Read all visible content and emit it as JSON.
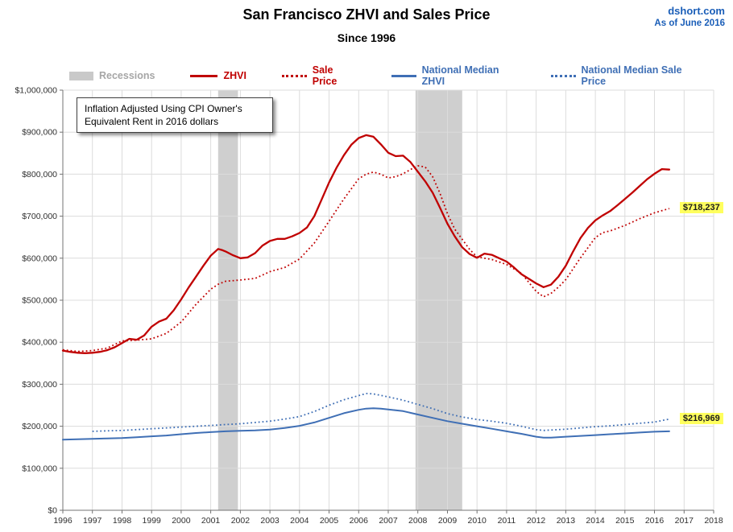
{
  "header": {
    "title": "San Francisco ZHVI and Sales Price",
    "subtitle": "Since 1996",
    "source": "dshort.com",
    "as_of": "As of June 2016"
  },
  "legend": {
    "items": [
      {
        "label": "Recessions"
      },
      {
        "label": "ZHVI"
      },
      {
        "label": "Sale Price"
      },
      {
        "label": "National Median ZHVI"
      },
      {
        "label": "National Median Sale Price"
      }
    ]
  },
  "annotation": {
    "text": "Inflation Adjusted Using CPI Owner's Equivalent Rent in 2016 dollars"
  },
  "callouts": {
    "sale_price": {
      "text": "$718,237",
      "value": 718.237
    },
    "national_sale": {
      "text": "$216,969",
      "value": 216.969
    }
  },
  "chart_data": {
    "type": "line",
    "title": "San Francisco ZHVI and Sales Price",
    "subtitle": "Since 1996",
    "xlabel": "",
    "ylabel": "",
    "x_range": [
      1996,
      2018
    ],
    "y_range": [
      0,
      1000
    ],
    "y_values_in": "thousands_of_2016_dollars",
    "grid": true,
    "legend_position": "top",
    "x_ticks": [
      1996,
      1997,
      1998,
      1999,
      2000,
      2001,
      2002,
      2003,
      2004,
      2005,
      2006,
      2007,
      2008,
      2009,
      2010,
      2011,
      2012,
      2013,
      2014,
      2015,
      2016,
      2017,
      2018
    ],
    "y_ticks": [
      {
        "v": 0,
        "label": "$0"
      },
      {
        "v": 100,
        "label": "$100,000"
      },
      {
        "v": 200,
        "label": "$200,000"
      },
      {
        "v": 300,
        "label": "$300,000"
      },
      {
        "v": 400,
        "label": "$400,000"
      },
      {
        "v": 500,
        "label": "$500,000"
      },
      {
        "v": 600,
        "label": "$600,000"
      },
      {
        "v": 700,
        "label": "$700,000"
      },
      {
        "v": 800,
        "label": "$800,000"
      },
      {
        "v": 900,
        "label": "$900,000"
      },
      {
        "v": 1000,
        "label": "$1,000,000"
      }
    ],
    "recessions": [
      [
        2001.25,
        2001.92
      ],
      [
        2007.92,
        2009.5
      ]
    ],
    "colors": {
      "recession": "#cfcfcf",
      "grid": "#dcdcdc",
      "axis": "#737373",
      "red": "#C00000",
      "blue": "#3F6FB5",
      "callout_bg": "#ffff5e"
    },
    "series": [
      {
        "id": "zhvi",
        "name": "ZHVI",
        "color": "#C00000",
        "style": "solid",
        "width": 2.3,
        "points": [
          [
            1996.0,
            380
          ],
          [
            1996.25,
            377
          ],
          [
            1996.5,
            375
          ],
          [
            1996.75,
            374
          ],
          [
            1997.0,
            375
          ],
          [
            1997.25,
            377
          ],
          [
            1997.5,
            381
          ],
          [
            1997.75,
            388
          ],
          [
            1998.0,
            398
          ],
          [
            1998.25,
            408
          ],
          [
            1998.5,
            406
          ],
          [
            1998.75,
            416
          ],
          [
            1999.0,
            437
          ],
          [
            1999.25,
            449
          ],
          [
            1999.5,
            456
          ],
          [
            1999.75,
            476
          ],
          [
            2000.0,
            502
          ],
          [
            2000.25,
            530
          ],
          [
            2000.5,
            556
          ],
          [
            2000.75,
            582
          ],
          [
            2001.0,
            606
          ],
          [
            2001.25,
            622
          ],
          [
            2001.4,
            619
          ],
          [
            2001.5,
            616
          ],
          [
            2001.75,
            607
          ],
          [
            2002.0,
            600
          ],
          [
            2002.25,
            602
          ],
          [
            2002.5,
            612
          ],
          [
            2002.75,
            630
          ],
          [
            2003.0,
            641
          ],
          [
            2003.25,
            646
          ],
          [
            2003.5,
            646
          ],
          [
            2003.75,
            652
          ],
          [
            2004.0,
            660
          ],
          [
            2004.25,
            673
          ],
          [
            2004.5,
            700
          ],
          [
            2004.75,
            740
          ],
          [
            2005.0,
            780
          ],
          [
            2005.25,
            815
          ],
          [
            2005.5,
            845
          ],
          [
            2005.75,
            870
          ],
          [
            2006.0,
            886
          ],
          [
            2006.25,
            893
          ],
          [
            2006.5,
            889
          ],
          [
            2006.75,
            871
          ],
          [
            2007.0,
            851
          ],
          [
            2007.25,
            843
          ],
          [
            2007.5,
            844
          ],
          [
            2007.75,
            829
          ],
          [
            2008.0,
            806
          ],
          [
            2008.25,
            783
          ],
          [
            2008.5,
            756
          ],
          [
            2008.75,
            720
          ],
          [
            2009.0,
            682
          ],
          [
            2009.25,
            652
          ],
          [
            2009.5,
            626
          ],
          [
            2009.75,
            610
          ],
          [
            2010.0,
            601
          ],
          [
            2010.25,
            611
          ],
          [
            2010.5,
            608
          ],
          [
            2010.75,
            600
          ],
          [
            2011.0,
            592
          ],
          [
            2011.25,
            578
          ],
          [
            2011.5,
            562
          ],
          [
            2011.75,
            551
          ],
          [
            2012.0,
            540
          ],
          [
            2012.25,
            531
          ],
          [
            2012.5,
            537
          ],
          [
            2012.75,
            556
          ],
          [
            2013.0,
            582
          ],
          [
            2013.25,
            616
          ],
          [
            2013.5,
            648
          ],
          [
            2013.75,
            672
          ],
          [
            2014.0,
            690
          ],
          [
            2014.25,
            702
          ],
          [
            2014.5,
            712
          ],
          [
            2014.75,
            726
          ],
          [
            2015.0,
            741
          ],
          [
            2015.25,
            756
          ],
          [
            2015.5,
            772
          ],
          [
            2015.75,
            788
          ],
          [
            2016.0,
            801
          ],
          [
            2016.25,
            812
          ],
          [
            2016.5,
            811
          ]
        ]
      },
      {
        "id": "sale-price",
        "name": "Sale Price",
        "color": "#C00000",
        "style": "dotted",
        "width": 1.8,
        "points": [
          [
            1996.0,
            382
          ],
          [
            1996.5,
            378
          ],
          [
            1997.0,
            380
          ],
          [
            1997.5,
            386
          ],
          [
            1998.0,
            403
          ],
          [
            1998.5,
            405
          ],
          [
            1999.0,
            408
          ],
          [
            1999.5,
            421
          ],
          [
            2000.0,
            448
          ],
          [
            2000.5,
            490
          ],
          [
            2001.0,
            526
          ],
          [
            2001.25,
            538
          ],
          [
            2001.5,
            545
          ],
          [
            2002.0,
            548
          ],
          [
            2002.5,
            552
          ],
          [
            2003.0,
            568
          ],
          [
            2003.5,
            578
          ],
          [
            2004.0,
            598
          ],
          [
            2004.5,
            636
          ],
          [
            2005.0,
            688
          ],
          [
            2005.5,
            741
          ],
          [
            2006.0,
            789
          ],
          [
            2006.25,
            800
          ],
          [
            2006.5,
            805
          ],
          [
            2006.75,
            800
          ],
          [
            2007.0,
            791
          ],
          [
            2007.25,
            794
          ],
          [
            2007.5,
            801
          ],
          [
            2007.75,
            811
          ],
          [
            2008.0,
            820
          ],
          [
            2008.25,
            817
          ],
          [
            2008.5,
            794
          ],
          [
            2008.75,
            754
          ],
          [
            2009.0,
            706
          ],
          [
            2009.25,
            669
          ],
          [
            2009.5,
            645
          ],
          [
            2009.75,
            621
          ],
          [
            2010.0,
            603
          ],
          [
            2010.5,
            597
          ],
          [
            2011.0,
            585
          ],
          [
            2011.5,
            564
          ],
          [
            2012.0,
            521
          ],
          [
            2012.25,
            508
          ],
          [
            2012.5,
            516
          ],
          [
            2012.75,
            531
          ],
          [
            2013.0,
            549
          ],
          [
            2013.5,
            601
          ],
          [
            2014.0,
            649
          ],
          [
            2014.25,
            661
          ],
          [
            2014.5,
            665
          ],
          [
            2015.0,
            678
          ],
          [
            2015.5,
            694
          ],
          [
            2016.0,
            708
          ],
          [
            2016.5,
            718.237
          ]
        ]
      },
      {
        "id": "national-zhvi",
        "name": "National Median ZHVI",
        "color": "#3F6FB5",
        "style": "solid",
        "width": 2,
        "points": [
          [
            1996.0,
            168
          ],
          [
            1996.5,
            169
          ],
          [
            1997.0,
            170
          ],
          [
            1997.5,
            171
          ],
          [
            1998.0,
            172
          ],
          [
            1998.5,
            174
          ],
          [
            1999.0,
            176
          ],
          [
            1999.5,
            178
          ],
          [
            2000.0,
            181
          ],
          [
            2000.5,
            184
          ],
          [
            2001.0,
            186
          ],
          [
            2001.5,
            188
          ],
          [
            2002.0,
            189
          ],
          [
            2002.5,
            190
          ],
          [
            2003.0,
            192
          ],
          [
            2003.5,
            196
          ],
          [
            2004.0,
            201
          ],
          [
            2004.5,
            209
          ],
          [
            2005.0,
            220
          ],
          [
            2005.5,
            231
          ],
          [
            2006.0,
            239
          ],
          [
            2006.25,
            242
          ],
          [
            2006.5,
            243
          ],
          [
            2006.75,
            242
          ],
          [
            2007.0,
            240
          ],
          [
            2007.5,
            236
          ],
          [
            2008.0,
            228
          ],
          [
            2008.5,
            220
          ],
          [
            2009.0,
            212
          ],
          [
            2009.5,
            206
          ],
          [
            2010.0,
            200
          ],
          [
            2010.5,
            194
          ],
          [
            2011.0,
            188
          ],
          [
            2011.5,
            182
          ],
          [
            2012.0,
            175
          ],
          [
            2012.25,
            173
          ],
          [
            2012.5,
            173
          ],
          [
            2013.0,
            175
          ],
          [
            2013.5,
            177
          ],
          [
            2014.0,
            179
          ],
          [
            2014.5,
            181
          ],
          [
            2015.0,
            183
          ],
          [
            2015.5,
            185
          ],
          [
            2016.0,
            187
          ],
          [
            2016.5,
            188
          ]
        ]
      },
      {
        "id": "national-sale",
        "name": "National Median Sale Price",
        "color": "#3F6FB5",
        "style": "dotted",
        "width": 1.8,
        "points": [
          [
            1997.0,
            188
          ],
          [
            1997.5,
            189
          ],
          [
            1998.0,
            190
          ],
          [
            1998.5,
            192
          ],
          [
            1999.0,
            194
          ],
          [
            1999.5,
            196
          ],
          [
            2000.0,
            198
          ],
          [
            2000.5,
            200
          ],
          [
            2001.0,
            202
          ],
          [
            2001.5,
            204
          ],
          [
            2002.0,
            206
          ],
          [
            2002.5,
            209
          ],
          [
            2003.0,
            212
          ],
          [
            2003.5,
            217
          ],
          [
            2004.0,
            223
          ],
          [
            2004.5,
            235
          ],
          [
            2005.0,
            250
          ],
          [
            2005.5,
            263
          ],
          [
            2006.0,
            273
          ],
          [
            2006.25,
            278
          ],
          [
            2006.5,
            277
          ],
          [
            2007.0,
            270
          ],
          [
            2007.5,
            262
          ],
          [
            2008.0,
            252
          ],
          [
            2008.5,
            242
          ],
          [
            2009.0,
            230
          ],
          [
            2009.5,
            222
          ],
          [
            2010.0,
            216
          ],
          [
            2010.5,
            212
          ],
          [
            2011.0,
            207
          ],
          [
            2011.5,
            200
          ],
          [
            2012.0,
            192
          ],
          [
            2012.25,
            190
          ],
          [
            2012.5,
            191
          ],
          [
            2013.0,
            193
          ],
          [
            2013.5,
            196
          ],
          [
            2014.0,
            199
          ],
          [
            2014.5,
            201
          ],
          [
            2015.0,
            204
          ],
          [
            2015.5,
            207
          ],
          [
            2016.0,
            210
          ],
          [
            2016.5,
            216.969
          ]
        ]
      }
    ]
  }
}
